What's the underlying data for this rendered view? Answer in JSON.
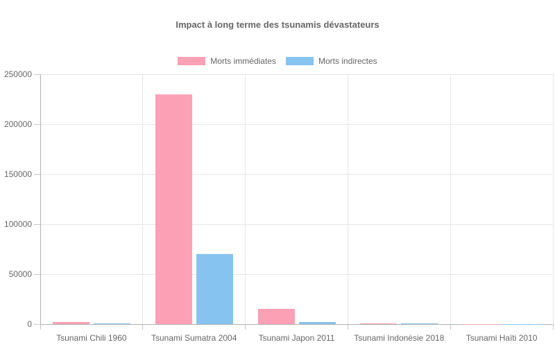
{
  "title": "Impact à long terme des tsunamis dévastateurs",
  "legend": [
    {
      "label": "Morts immédiates",
      "color": "#fca0b5"
    },
    {
      "label": "Morts indirectes",
      "color": "#86c3f0"
    }
  ],
  "chart_data": {
    "type": "bar",
    "title": "Impact à long terme des tsunamis dévastateurs",
    "categories": [
      "Tsunami Chili 1960",
      "Tsunami Sumatra 2004",
      "Tsunami Japon 2011",
      "Tsunami Indonésie 2018",
      "Tsunami Haïti 2010"
    ],
    "series": [
      {
        "name": "Morts immédiates",
        "color": "#fca0b5",
        "values": [
          2000,
          230000,
          15000,
          500,
          300
        ]
      },
      {
        "name": "Morts indirectes",
        "color": "#86c3f0",
        "values": [
          1000,
          70000,
          2000,
          400,
          150
        ]
      }
    ],
    "xlabel": "",
    "ylabel": "",
    "ylim": [
      0,
      250000
    ],
    "yticks": [
      0,
      50000,
      100000,
      150000,
      200000,
      250000
    ],
    "grid": true,
    "legend_position": "top"
  },
  "colors": {
    "text": "#666666",
    "gridline": "#e6e6e6",
    "axis_line": "#b1b1b1",
    "background": "#ffffff"
  }
}
